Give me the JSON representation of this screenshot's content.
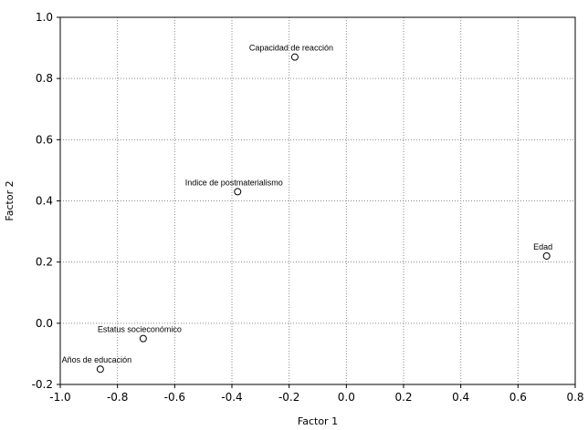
{
  "chart_data": {
    "type": "scatter",
    "title": "",
    "xlabel": "Factor 1",
    "ylabel": "Factor 2",
    "xlim": [
      -1.0,
      0.8
    ],
    "ylim": [
      -0.2,
      1.0
    ],
    "x_ticks": [
      -1.0,
      -0.8,
      -0.6,
      -0.4,
      -0.2,
      0.0,
      0.2,
      0.4,
      0.6,
      0.8
    ],
    "y_ticks": [
      -0.2,
      0.0,
      0.2,
      0.4,
      0.6,
      0.8,
      1.0
    ],
    "grid": true,
    "marker": "open-circle",
    "points": [
      {
        "label": "Capacidad de reacción",
        "x": -0.18,
        "y": 0.87
      },
      {
        "label": "Indice de postmaterialismo",
        "x": -0.38,
        "y": 0.43
      },
      {
        "label": "Edad",
        "x": 0.7,
        "y": 0.22
      },
      {
        "label": "Estatus socieconómico",
        "x": -0.71,
        "y": -0.05
      },
      {
        "label": "Años de educación",
        "x": -0.86,
        "y": -0.15
      }
    ]
  }
}
